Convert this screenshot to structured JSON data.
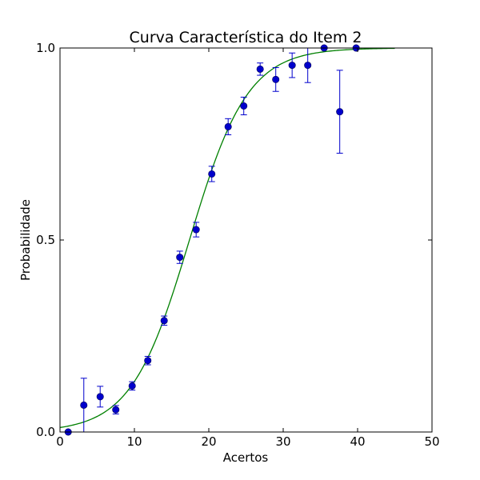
{
  "chart_data": {
    "type": "scatter",
    "title": "Curva Característica do Item 2",
    "xlabel": "Acertos",
    "ylabel": "Probabilidade",
    "xlim": [
      0,
      50
    ],
    "ylim": [
      0.0,
      1.0
    ],
    "xticks": [
      "0",
      "10",
      "20",
      "30",
      "40",
      "50"
    ],
    "yticks": [
      "0.0",
      "0.5",
      "1.0"
    ],
    "grid": false,
    "legend": "none",
    "colors": {
      "points": "#0000cc",
      "errorbars": "#0000cc",
      "curve": "#008000"
    },
    "series": [
      {
        "type": "errorbar",
        "points": [
          {
            "x": 1.1,
            "y": 0.0,
            "err": 0.0
          },
          {
            "x": 3.2,
            "y": 0.07,
            "err": 0.07
          },
          {
            "x": 5.4,
            "y": 0.092,
            "err": 0.027
          },
          {
            "x": 7.5,
            "y": 0.058,
            "err": 0.011
          },
          {
            "x": 9.7,
            "y": 0.12,
            "err": 0.011
          },
          {
            "x": 11.8,
            "y": 0.186,
            "err": 0.011
          },
          {
            "x": 14.0,
            "y": 0.29,
            "err": 0.012
          },
          {
            "x": 16.1,
            "y": 0.455,
            "err": 0.016
          },
          {
            "x": 18.3,
            "y": 0.527,
            "err": 0.019
          },
          {
            "x": 20.4,
            "y": 0.672,
            "err": 0.02
          },
          {
            "x": 22.6,
            "y": 0.795,
            "err": 0.021
          },
          {
            "x": 24.7,
            "y": 0.849,
            "err": 0.023
          },
          {
            "x": 26.9,
            "y": 0.945,
            "err": 0.016
          },
          {
            "x": 29.0,
            "y": 0.918,
            "err": 0.031
          },
          {
            "x": 31.2,
            "y": 0.955,
            "err": 0.032
          },
          {
            "x": 33.3,
            "y": 0.955,
            "err": 0.045
          },
          {
            "x": 35.5,
            "y": 1.0,
            "err": 0.0
          },
          {
            "x": 37.6,
            "y": 0.834,
            "err": 0.108
          },
          {
            "x": 39.8,
            "y": 1.0,
            "err": 0.0
          }
        ]
      },
      {
        "type": "line",
        "curve": "logistic",
        "params": {
          "c": 0.0,
          "d": 1.0,
          "a": 0.255,
          "b": 17.4
        },
        "x_range": [
          0,
          45
        ]
      }
    ]
  }
}
